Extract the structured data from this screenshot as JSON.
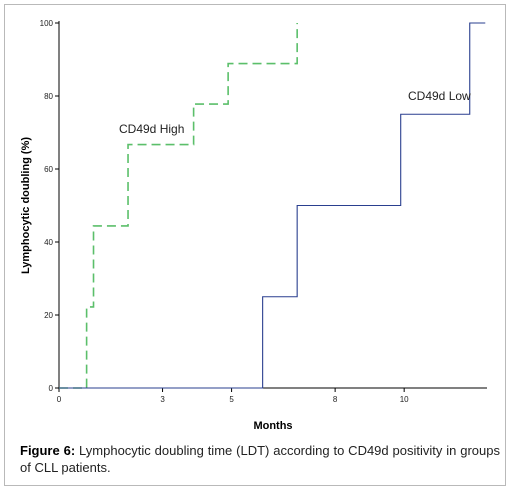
{
  "chart_data": {
    "type": "line",
    "step": true,
    "xlabel": "Months",
    "ylabel": "Lymphocytic doubling (%)",
    "xlim": [
      0,
      12.4
    ],
    "ylim": [
      0,
      100
    ],
    "xticks": [
      0,
      3,
      5,
      8,
      10
    ],
    "x_tick_labels": [
      "0",
      "3",
      "5",
      "8",
      "10"
    ],
    "yticks": [
      0,
      20,
      40,
      60,
      80,
      100
    ],
    "y_tick_labels": [
      "0",
      "20",
      "40",
      "60",
      "80",
      "100"
    ],
    "grid": false,
    "series": [
      {
        "name": "CD49d High",
        "line_style": "dashed",
        "color": "#5bbf6a",
        "x": [
          0,
          0.8,
          1.0,
          2.0,
          3.9,
          4.9,
          6.9
        ],
        "y": [
          0,
          22.2,
          44.4,
          66.7,
          77.8,
          88.9,
          100
        ]
      },
      {
        "name": "CD49d Low",
        "line_style": "solid",
        "color": "#2a3f8f",
        "x": [
          0,
          5.9,
          6.9,
          9.9,
          11.9,
          12.35
        ],
        "y": [
          0,
          25,
          50,
          75,
          100,
          100
        ]
      }
    ]
  },
  "caption": {
    "figure_label": "Figure 6:",
    "text": " Lymphocytic doubling time (LDT) according to CD49d positivity in groups of CLL patients."
  }
}
